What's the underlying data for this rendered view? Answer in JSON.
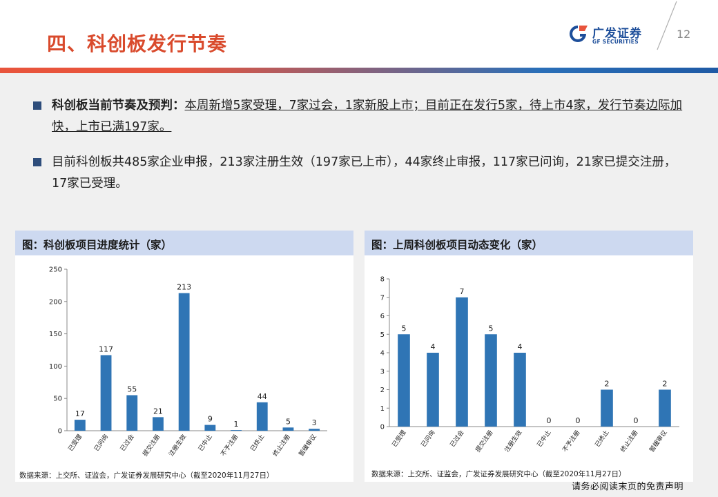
{
  "header": {
    "title": "四、科创板发行节奏",
    "logo_cn": "广发证券",
    "logo_en": "GF SECURITIES",
    "page_number": "12",
    "brand_colors": {
      "red": "#d94a2c",
      "blue": "#1d4e9a"
    }
  },
  "bullets": [
    {
      "bold": "科创板当前节奏及预判：",
      "underlined": "本周新增5家受理，7家过会，1家新股上市；目前正在发行5家，待上市4家，发行节奏边际加快，上市已满197家。"
    },
    {
      "text": "目前科创板共485家企业申报，213家注册生效（197家已上市），44家终止审报，117家已问询，21家已提交注册，17家已受理。"
    }
  ],
  "charts": {
    "left": {
      "title": "图：科创板项目进度统计（家）",
      "source": "数据来源：上交所、证监会，广发证券发展研究中心（截至2020年11月27日）"
    },
    "right": {
      "title": "图：上周科创板项目动态变化（家）",
      "source": "数据来源：上交所、证监会，广发证券发展研究中心（截至2020年11月27日）"
    }
  },
  "chart_data": [
    {
      "type": "bar",
      "categories": [
        "已受理",
        "已问询",
        "已过会",
        "提交注册",
        "注册生效",
        "已中止",
        "不予注册",
        "已终止",
        "终止注册",
        "暂缓审议"
      ],
      "values": [
        17,
        117,
        55,
        21,
        213,
        9,
        1,
        44,
        5,
        3
      ],
      "ylim": [
        0,
        250
      ],
      "yticks": [
        0,
        50,
        100,
        150,
        200,
        250
      ],
      "bar_color": "#2f75b5",
      "grid": false,
      "data_labels": true
    },
    {
      "type": "bar",
      "categories": [
        "已受理",
        "已问询",
        "已过会",
        "提交注册",
        "注册生效",
        "已中止",
        "不予注册",
        "已终止",
        "终止注册",
        "暂缓审议"
      ],
      "values": [
        5,
        4,
        7,
        5,
        4,
        0,
        0,
        2,
        0,
        2
      ],
      "ylim": [
        0,
        8
      ],
      "yticks": [
        0,
        1,
        2,
        3,
        4,
        5,
        6,
        7,
        8
      ],
      "bar_color": "#2f75b5",
      "grid": false,
      "data_labels": true
    }
  ],
  "footer": {
    "disclaimer": "请务必阅读末页的免责声明"
  }
}
